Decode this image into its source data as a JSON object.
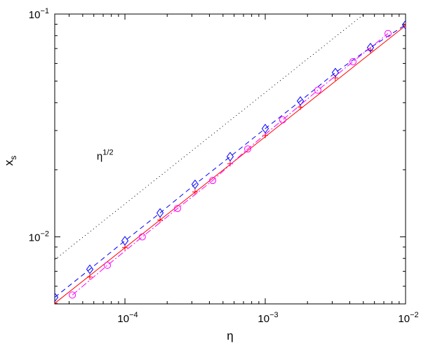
{
  "chart_data": {
    "type": "line",
    "title": "",
    "xlabel": "η",
    "ylabel": "x",
    "ylabel_sub": "s",
    "xscale": "log",
    "yscale": "log",
    "xlim": [
      3.16e-05,
      0.01
    ],
    "ylim": [
      0.005,
      0.1
    ],
    "grid": false,
    "legend": "none",
    "x_ticks": [
      {
        "value": 0.0001,
        "base": "10",
        "exp": "−4"
      },
      {
        "value": 0.001,
        "base": "10",
        "exp": "−3"
      },
      {
        "value": 0.01,
        "base": "10",
        "exp": "−2"
      }
    ],
    "y_ticks": [
      {
        "value": 0.01,
        "base": "10",
        "exp": "−2"
      },
      {
        "value": 0.1,
        "base": "10",
        "exp": "−1"
      }
    ],
    "annotation": {
      "base": "η",
      "exp": "1/2",
      "x": 6.3e-05,
      "y": 0.0232
    },
    "series": [
      {
        "name": "",
        "color": "#000000",
        "dash": "1,4",
        "marker": "none",
        "x": [
          3.16e-05,
          0.01
        ],
        "y": [
          0.0079,
          0.1405
        ]
      },
      {
        "name": "",
        "color": "#ff0000",
        "dash": "",
        "marker": "none",
        "x": [
          3.16e-05,
          0.01
        ],
        "y": [
          0.00503,
          0.0887
        ]
      },
      {
        "name": "",
        "color": "#ff0000",
        "dash": "",
        "marker": "plus",
        "x": [
          3.16e-05,
          5.62e-05,
          0.0001,
          0.000178,
          0.000316,
          0.000562,
          0.001,
          0.00178,
          0.00316,
          0.00562,
          0.01
        ],
        "y": [
          0.00503,
          0.0066,
          0.00895,
          0.0119,
          0.0159,
          0.0213,
          0.0285,
          0.0382,
          0.0517,
          0.0687,
          0.089
        ]
      },
      {
        "name": "",
        "color": "#0000ff",
        "dash": "7,5",
        "marker": "diamond",
        "x": [
          3.16e-05,
          5.62e-05,
          0.0001,
          0.000178,
          0.000316,
          0.000562,
          0.001,
          0.00178,
          0.00316,
          0.00562,
          0.01
        ],
        "y": [
          0.00535,
          0.00715,
          0.0096,
          0.0128,
          0.0172,
          0.0229,
          0.0306,
          0.0407,
          0.0546,
          0.0707,
          0.0895
        ]
      },
      {
        "name": "",
        "color": "#ff00ff",
        "dash": "9,3,2,3",
        "marker": "circle",
        "x": [
          4.22e-05,
          7.5e-05,
          0.000133,
          0.000237,
          0.000422,
          0.00075,
          0.00133,
          0.00237,
          0.00422,
          0.0075
        ],
        "y": [
          0.00548,
          0.00745,
          0.01,
          0.0134,
          0.0179,
          0.0248,
          0.0335,
          0.0455,
          0.0611,
          0.0818
        ]
      }
    ]
  }
}
